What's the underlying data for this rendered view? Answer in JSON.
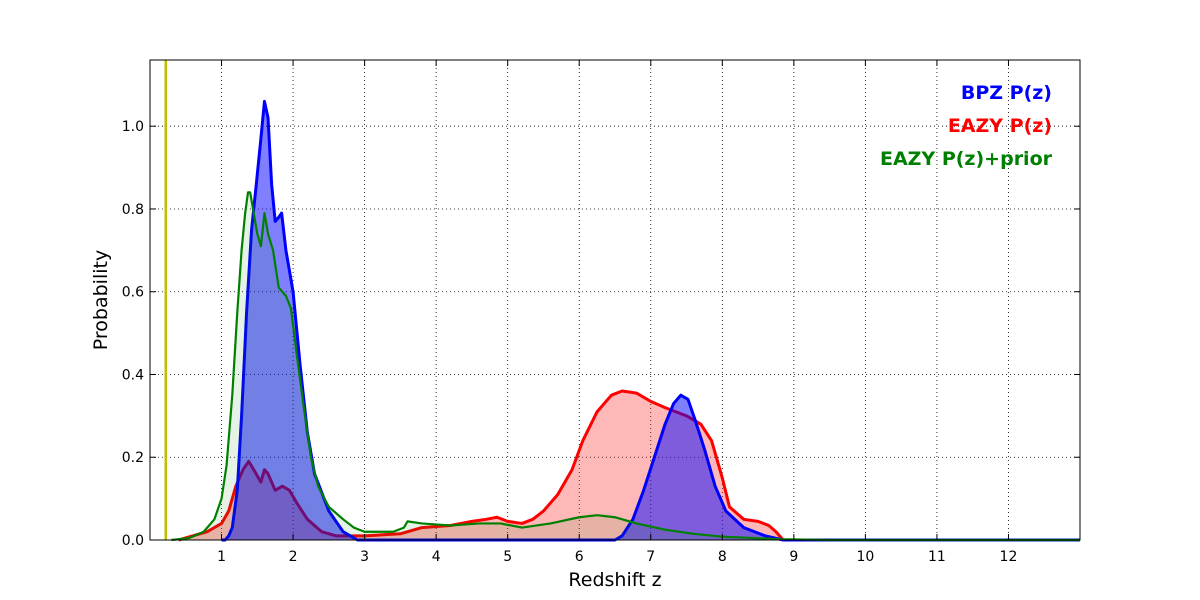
{
  "chart_data": {
    "type": "area",
    "xlabel": "Redshift z",
    "ylabel": "Probability",
    "xlim": [
      0,
      13
    ],
    "ylim": [
      0,
      1.16
    ],
    "xticks": [
      1,
      2,
      3,
      4,
      5,
      6,
      7,
      8,
      9,
      10,
      11,
      12
    ],
    "yticks": [
      0.0,
      0.2,
      0.4,
      0.6,
      0.8,
      1.0
    ],
    "grid": true,
    "legend_position": "top-right",
    "vertical_line": {
      "x": 0.22,
      "color": "#bfbf00"
    },
    "series": [
      {
        "name": "EAZY P(z)",
        "color": "#ff0000",
        "fill": "#ff0000",
        "fill_opacity": 0.28,
        "stroke_width": 3,
        "points": [
          [
            0.4,
            0.0
          ],
          [
            0.6,
            0.01
          ],
          [
            0.8,
            0.02
          ],
          [
            1.0,
            0.04
          ],
          [
            1.1,
            0.07
          ],
          [
            1.15,
            0.1
          ],
          [
            1.2,
            0.13
          ],
          [
            1.3,
            0.17
          ],
          [
            1.38,
            0.19
          ],
          [
            1.45,
            0.17
          ],
          [
            1.55,
            0.14
          ],
          [
            1.6,
            0.17
          ],
          [
            1.65,
            0.16
          ],
          [
            1.75,
            0.12
          ],
          [
            1.85,
            0.13
          ],
          [
            1.95,
            0.12
          ],
          [
            2.05,
            0.09
          ],
          [
            2.2,
            0.05
          ],
          [
            2.4,
            0.02
          ],
          [
            2.6,
            0.01
          ],
          [
            3.0,
            0.01
          ],
          [
            3.5,
            0.015
          ],
          [
            3.8,
            0.03
          ],
          [
            4.2,
            0.035
          ],
          [
            4.5,
            0.045
          ],
          [
            4.7,
            0.05
          ],
          [
            4.85,
            0.055
          ],
          [
            5.0,
            0.045
          ],
          [
            5.2,
            0.04
          ],
          [
            5.35,
            0.05
          ],
          [
            5.5,
            0.07
          ],
          [
            5.7,
            0.11
          ],
          [
            5.9,
            0.17
          ],
          [
            6.05,
            0.24
          ],
          [
            6.25,
            0.31
          ],
          [
            6.45,
            0.35
          ],
          [
            6.6,
            0.36
          ],
          [
            6.8,
            0.355
          ],
          [
            7.0,
            0.335
          ],
          [
            7.2,
            0.32
          ],
          [
            7.5,
            0.3
          ],
          [
            7.7,
            0.28
          ],
          [
            7.85,
            0.24
          ],
          [
            8.0,
            0.15
          ],
          [
            8.1,
            0.08
          ],
          [
            8.3,
            0.05
          ],
          [
            8.5,
            0.045
          ],
          [
            8.65,
            0.035
          ],
          [
            8.75,
            0.02
          ],
          [
            8.85,
            0.0
          ],
          [
            13.0,
            0.0
          ]
        ]
      },
      {
        "name": "BPZ P(z)",
        "color": "#0000ff",
        "fill": "#0000ff",
        "fill_opacity": 0.5,
        "stroke_width": 3,
        "points": [
          [
            1.0,
            0.0
          ],
          [
            1.05,
            0.0
          ],
          [
            1.1,
            0.01
          ],
          [
            1.15,
            0.03
          ],
          [
            1.22,
            0.12
          ],
          [
            1.28,
            0.3
          ],
          [
            1.35,
            0.55
          ],
          [
            1.42,
            0.75
          ],
          [
            1.48,
            0.85
          ],
          [
            1.55,
            0.97
          ],
          [
            1.6,
            1.06
          ],
          [
            1.65,
            1.02
          ],
          [
            1.7,
            0.86
          ],
          [
            1.75,
            0.77
          ],
          [
            1.8,
            0.78
          ],
          [
            1.84,
            0.79
          ],
          [
            1.9,
            0.7
          ],
          [
            2.0,
            0.6
          ],
          [
            2.1,
            0.42
          ],
          [
            2.2,
            0.26
          ],
          [
            2.3,
            0.16
          ],
          [
            2.5,
            0.07
          ],
          [
            2.7,
            0.02
          ],
          [
            2.9,
            0.0
          ],
          [
            6.5,
            0.0
          ],
          [
            6.6,
            0.01
          ],
          [
            6.75,
            0.05
          ],
          [
            6.9,
            0.12
          ],
          [
            7.05,
            0.2
          ],
          [
            7.2,
            0.28
          ],
          [
            7.32,
            0.33
          ],
          [
            7.42,
            0.35
          ],
          [
            7.52,
            0.34
          ],
          [
            7.62,
            0.29
          ],
          [
            7.75,
            0.22
          ],
          [
            7.9,
            0.13
          ],
          [
            8.05,
            0.07
          ],
          [
            8.3,
            0.03
          ],
          [
            8.6,
            0.01
          ],
          [
            8.85,
            0.0
          ],
          [
            13.0,
            0.0
          ]
        ]
      },
      {
        "name": "EAZY P(z)+prior",
        "color": "#008000",
        "fill": "#008000",
        "fill_opacity": 0.1,
        "stroke_width": 2.2,
        "points": [
          [
            0.3,
            0.0
          ],
          [
            0.55,
            0.005
          ],
          [
            0.75,
            0.02
          ],
          [
            0.9,
            0.05
          ],
          [
            1.0,
            0.1
          ],
          [
            1.07,
            0.18
          ],
          [
            1.15,
            0.35
          ],
          [
            1.22,
            0.55
          ],
          [
            1.28,
            0.7
          ],
          [
            1.33,
            0.79
          ],
          [
            1.37,
            0.84
          ],
          [
            1.4,
            0.84
          ],
          [
            1.45,
            0.79
          ],
          [
            1.5,
            0.74
          ],
          [
            1.55,
            0.71
          ],
          [
            1.6,
            0.79
          ],
          [
            1.65,
            0.74
          ],
          [
            1.72,
            0.7
          ],
          [
            1.8,
            0.61
          ],
          [
            1.85,
            0.6
          ],
          [
            1.9,
            0.59
          ],
          [
            1.97,
            0.56
          ],
          [
            2.05,
            0.45
          ],
          [
            2.15,
            0.32
          ],
          [
            2.25,
            0.2
          ],
          [
            2.35,
            0.13
          ],
          [
            2.5,
            0.08
          ],
          [
            2.7,
            0.05
          ],
          [
            2.85,
            0.03
          ],
          [
            3.0,
            0.02
          ],
          [
            3.2,
            0.02
          ],
          [
            3.4,
            0.02
          ],
          [
            3.55,
            0.03
          ],
          [
            3.6,
            0.045
          ],
          [
            3.8,
            0.04
          ],
          [
            4.2,
            0.035
          ],
          [
            4.6,
            0.04
          ],
          [
            4.9,
            0.04
          ],
          [
            5.2,
            0.03
          ],
          [
            5.6,
            0.04
          ],
          [
            6.0,
            0.055
          ],
          [
            6.25,
            0.06
          ],
          [
            6.5,
            0.055
          ],
          [
            6.8,
            0.04
          ],
          [
            7.2,
            0.025
          ],
          [
            7.6,
            0.015
          ],
          [
            8.0,
            0.008
          ],
          [
            8.8,
            0.002
          ],
          [
            9.5,
            0.0
          ],
          [
            13.0,
            0.0
          ]
        ]
      }
    ]
  }
}
